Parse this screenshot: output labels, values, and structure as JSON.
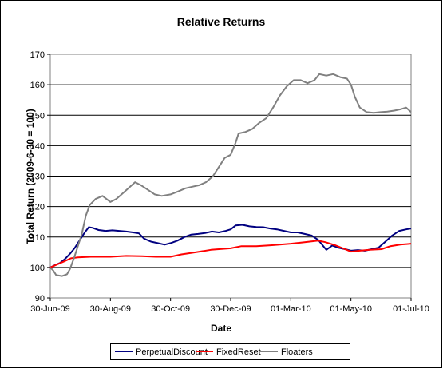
{
  "chart_data": {
    "type": "line",
    "title": "Relative Returns",
    "xlabel": "Date",
    "ylabel": "Total Return (2009-6-30 = 100)",
    "ylim": [
      90,
      170
    ],
    "yticks": [
      90,
      100,
      110,
      120,
      130,
      140,
      150,
      160,
      170
    ],
    "xlim": [
      "2009-06-30",
      "2010-07-01"
    ],
    "xticks": [
      {
        "date": "2009-06-30",
        "label": "30-Jun-09"
      },
      {
        "date": "2009-08-30",
        "label": "30-Aug-09"
      },
      {
        "date": "2009-10-30",
        "label": "30-Oct-09"
      },
      {
        "date": "2009-12-30",
        "label": "30-Dec-09"
      },
      {
        "date": "2010-03-01",
        "label": "01-Mar-10"
      },
      {
        "date": "2010-05-01",
        "label": "01-May-10"
      },
      {
        "date": "2010-07-01",
        "label": "01-Jul-10"
      }
    ],
    "grid": "horizontal",
    "legend": "bottom",
    "series": [
      {
        "name": "PerpetualDiscount",
        "color": "#000080",
        "points": [
          [
            "2009-06-30",
            100.0
          ],
          [
            "2009-07-05",
            100.8
          ],
          [
            "2009-07-10",
            101.5
          ],
          [
            "2009-07-15",
            102.8
          ],
          [
            "2009-07-20",
            104.5
          ],
          [
            "2009-07-25",
            106.5
          ],
          [
            "2009-07-30",
            109.0
          ],
          [
            "2009-08-04",
            111.5
          ],
          [
            "2009-08-08",
            113.2
          ],
          [
            "2009-08-12",
            113.0
          ],
          [
            "2009-08-18",
            112.3
          ],
          [
            "2009-08-25",
            112.0
          ],
          [
            "2009-09-01",
            112.2
          ],
          [
            "2009-09-08",
            112.0
          ],
          [
            "2009-09-15",
            111.8
          ],
          [
            "2009-09-22",
            111.5
          ],
          [
            "2009-09-28",
            111.2
          ],
          [
            "2009-10-03",
            109.5
          ],
          [
            "2009-10-10",
            108.5
          ],
          [
            "2009-10-17",
            108.0
          ],
          [
            "2009-10-24",
            107.5
          ],
          [
            "2009-10-30",
            108.0
          ],
          [
            "2009-11-06",
            108.8
          ],
          [
            "2009-11-13",
            110.0
          ],
          [
            "2009-11-20",
            110.8
          ],
          [
            "2009-11-27",
            111.0
          ],
          [
            "2009-12-04",
            111.3
          ],
          [
            "2009-12-11",
            111.8
          ],
          [
            "2009-12-18",
            111.5
          ],
          [
            "2009-12-25",
            112.0
          ],
          [
            "2009-12-30",
            112.5
          ],
          [
            "2010-01-04",
            113.8
          ],
          [
            "2010-01-11",
            114.0
          ],
          [
            "2010-01-18",
            113.5
          ],
          [
            "2010-01-25",
            113.3
          ],
          [
            "2010-02-01",
            113.2
          ],
          [
            "2010-02-08",
            112.8
          ],
          [
            "2010-02-15",
            112.5
          ],
          [
            "2010-02-22",
            112.0
          ],
          [
            "2010-03-01",
            111.5
          ],
          [
            "2010-03-08",
            111.5
          ],
          [
            "2010-03-15",
            111.0
          ],
          [
            "2010-03-22",
            110.5
          ],
          [
            "2010-03-29",
            109.0
          ],
          [
            "2010-04-03",
            107.0
          ],
          [
            "2010-04-06",
            105.8
          ],
          [
            "2010-04-12",
            107.2
          ],
          [
            "2010-04-18",
            106.5
          ],
          [
            "2010-04-25",
            106.0
          ],
          [
            "2010-05-01",
            105.5
          ],
          [
            "2010-05-08",
            105.7
          ],
          [
            "2010-05-15",
            105.5
          ],
          [
            "2010-05-22",
            106.0
          ],
          [
            "2010-05-29",
            106.5
          ],
          [
            "2010-06-05",
            108.5
          ],
          [
            "2010-06-12",
            110.5
          ],
          [
            "2010-06-19",
            112.0
          ],
          [
            "2010-06-26",
            112.5
          ],
          [
            "2010-07-01",
            112.8
          ]
        ]
      },
      {
        "name": "FixedReset",
        "color": "#ff0000",
        "points": [
          [
            "2009-06-30",
            100.0
          ],
          [
            "2009-07-07",
            101.0
          ],
          [
            "2009-07-14",
            102.0
          ],
          [
            "2009-07-21",
            103.0
          ],
          [
            "2009-07-28",
            103.3
          ],
          [
            "2009-08-10",
            103.5
          ],
          [
            "2009-08-30",
            103.5
          ],
          [
            "2009-09-15",
            103.8
          ],
          [
            "2009-10-01",
            103.7
          ],
          [
            "2009-10-15",
            103.5
          ],
          [
            "2009-10-30",
            103.5
          ],
          [
            "2009-11-10",
            104.3
          ],
          [
            "2009-11-25",
            105.0
          ],
          [
            "2009-12-10",
            105.8
          ],
          [
            "2009-12-30",
            106.3
          ],
          [
            "2010-01-10",
            107.0
          ],
          [
            "2010-01-25",
            107.0
          ],
          [
            "2010-02-10",
            107.3
          ],
          [
            "2010-03-01",
            107.8
          ],
          [
            "2010-03-15",
            108.3
          ],
          [
            "2010-03-29",
            108.8
          ],
          [
            "2010-04-05",
            108.3
          ],
          [
            "2010-04-15",
            107.3
          ],
          [
            "2010-04-25",
            106.0
          ],
          [
            "2010-05-01",
            105.2
          ],
          [
            "2010-05-10",
            105.5
          ],
          [
            "2010-05-20",
            105.8
          ],
          [
            "2010-06-01",
            106.0
          ],
          [
            "2010-06-10",
            107.0
          ],
          [
            "2010-06-20",
            107.5
          ],
          [
            "2010-07-01",
            107.8
          ]
        ]
      },
      {
        "name": "Floaters",
        "color": "#808080",
        "points": [
          [
            "2009-06-30",
            100.0
          ],
          [
            "2009-07-03",
            99.0
          ],
          [
            "2009-07-06",
            97.5
          ],
          [
            "2009-07-12",
            97.2
          ],
          [
            "2009-07-17",
            97.8
          ],
          [
            "2009-07-20",
            99.5
          ],
          [
            "2009-07-24",
            103.0
          ],
          [
            "2009-07-28",
            107.0
          ],
          [
            "2009-08-01",
            111.0
          ],
          [
            "2009-08-05",
            117.0
          ],
          [
            "2009-08-09",
            120.5
          ],
          [
            "2009-08-15",
            122.5
          ],
          [
            "2009-08-22",
            123.5
          ],
          [
            "2009-08-30",
            121.5
          ],
          [
            "2009-09-05",
            122.5
          ],
          [
            "2009-09-12",
            124.5
          ],
          [
            "2009-09-19",
            126.5
          ],
          [
            "2009-09-24",
            128.0
          ],
          [
            "2009-09-30",
            127.0
          ],
          [
            "2009-10-07",
            125.5
          ],
          [
            "2009-10-14",
            124.0
          ],
          [
            "2009-10-21",
            123.5
          ],
          [
            "2009-10-30",
            124.0
          ],
          [
            "2009-11-07",
            125.0
          ],
          [
            "2009-11-14",
            126.0
          ],
          [
            "2009-11-21",
            126.5
          ],
          [
            "2009-11-28",
            127.0
          ],
          [
            "2009-12-05",
            128.0
          ],
          [
            "2009-12-12",
            130.0
          ],
          [
            "2009-12-19",
            133.5
          ],
          [
            "2009-12-24",
            136.0
          ],
          [
            "2009-12-30",
            137.0
          ],
          [
            "2010-01-04",
            141.0
          ],
          [
            "2010-01-07",
            144.0
          ],
          [
            "2010-01-14",
            144.5
          ],
          [
            "2010-01-21",
            145.5
          ],
          [
            "2010-01-28",
            147.5
          ],
          [
            "2010-02-04",
            149.0
          ],
          [
            "2010-02-11",
            152.5
          ],
          [
            "2010-02-18",
            156.5
          ],
          [
            "2010-02-25",
            159.5
          ],
          [
            "2010-03-04",
            161.5
          ],
          [
            "2010-03-11",
            161.5
          ],
          [
            "2010-03-18",
            160.5
          ],
          [
            "2010-03-25",
            161.5
          ],
          [
            "2010-03-30",
            163.5
          ],
          [
            "2010-04-06",
            163.0
          ],
          [
            "2010-04-13",
            163.5
          ],
          [
            "2010-04-20",
            162.5
          ],
          [
            "2010-04-27",
            162.0
          ],
          [
            "2010-05-01",
            160.0
          ],
          [
            "2010-05-05",
            156.0
          ],
          [
            "2010-05-10",
            152.5
          ],
          [
            "2010-05-17",
            151.0
          ],
          [
            "2010-05-24",
            150.8
          ],
          [
            "2010-05-31",
            151.0
          ],
          [
            "2010-06-07",
            151.2
          ],
          [
            "2010-06-14",
            151.5
          ],
          [
            "2010-06-21",
            152.0
          ],
          [
            "2010-06-26",
            152.5
          ],
          [
            "2010-07-01",
            151.0
          ]
        ]
      }
    ]
  }
}
